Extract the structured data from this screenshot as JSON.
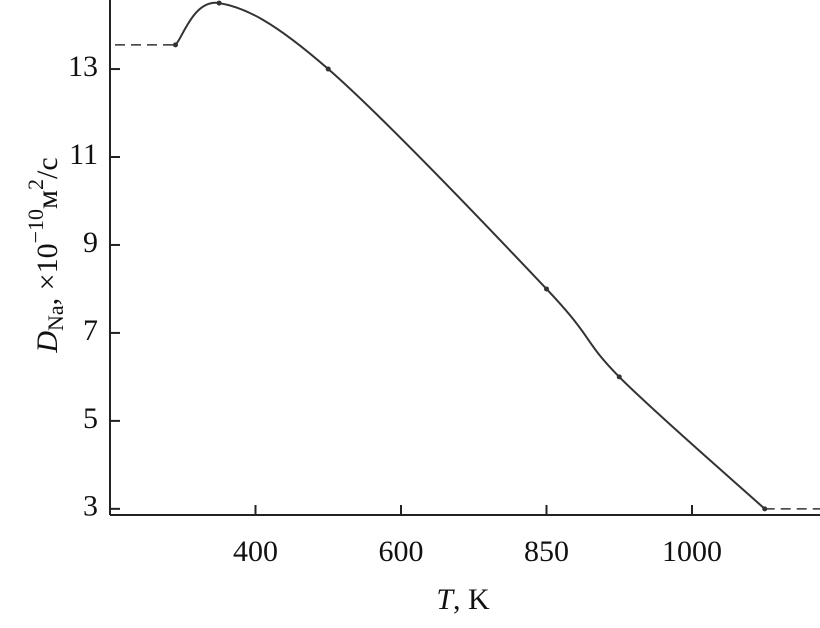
{
  "chart_data": {
    "type": "line",
    "x_label": {
      "symbol": "T",
      "text": ", K"
    },
    "y_label": {
      "symbol": "D",
      "subscript": "Na",
      "text": ", ×10",
      "exponent": "−10",
      "unit": "м",
      "unit_exponent": "2",
      "unit_rest": "/с"
    },
    "x": [
      290,
      350,
      500,
      850,
      925,
      1075
    ],
    "series": [
      {
        "color": "#333333",
        "values": [
          13.55,
          14.5,
          13,
          8,
          6,
          3
        ]
      }
    ],
    "xlim": [
      200,
      1132
    ],
    "xticks": [
      400,
      600,
      850,
      1000
    ],
    "ylim": [
      2.86,
      14.57
    ],
    "yticks": [
      3,
      5,
      7,
      9,
      11,
      13
    ]
  }
}
